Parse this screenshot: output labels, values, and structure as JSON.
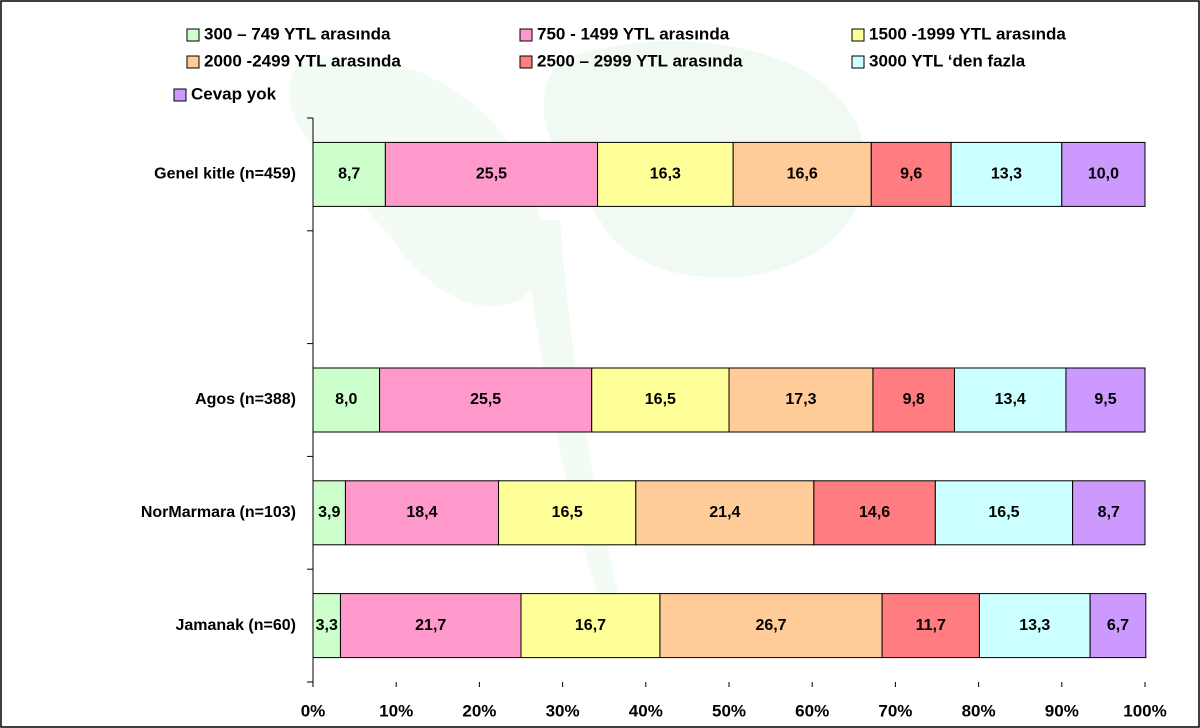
{
  "chart_data": {
    "type": "stacked-bar-horizontal",
    "categories": [
      "Genel kitle (n=459)",
      null,
      "Agos (n=388)",
      "NorMarmara (n=103)",
      "Jamanak (n=60)"
    ],
    "xlim": [
      0,
      100
    ],
    "xticks": [
      {
        "value": 0,
        "label": "0%"
      },
      {
        "value": 10,
        "label": "10%"
      },
      {
        "value": 20,
        "label": "20%"
      },
      {
        "value": 30,
        "label": "30%"
      },
      {
        "value": 40,
        "label": "40%"
      },
      {
        "value": 50,
        "label": "50%"
      },
      {
        "value": 60,
        "label": "60%"
      },
      {
        "value": 70,
        "label": "70%"
      },
      {
        "value": 80,
        "label": "80%"
      },
      {
        "value": 90,
        "label": "90%"
      },
      {
        "value": 100,
        "label": "100%"
      }
    ],
    "series": [
      {
        "name": "300 – 749 YTL arasında",
        "color": "#ccffcc",
        "values": [
          8.7,
          null,
          8.0,
          3.9,
          3.3
        ],
        "value_labels": [
          "8,7",
          null,
          "8,0",
          "3,9",
          "3,3"
        ]
      },
      {
        "name": "750  - 1499 YTL arasında",
        "color": "#ff99cc",
        "values": [
          25.5,
          null,
          25.5,
          18.4,
          21.7
        ],
        "value_labels": [
          "25,5",
          null,
          "25,5",
          "18,4",
          "21,7"
        ]
      },
      {
        "name": "1500 -1999 YTL arasında",
        "color": "#ffff99",
        "values": [
          16.3,
          null,
          16.5,
          16.5,
          16.7
        ],
        "value_labels": [
          "16,3",
          null,
          "16,5",
          "16,5",
          "16,7"
        ]
      },
      {
        "name": "2000 -2499 YTL arasında",
        "color": "#ffcc99",
        "values": [
          16.6,
          null,
          17.3,
          21.4,
          26.7
        ],
        "value_labels": [
          "16,6",
          null,
          "17,3",
          "21,4",
          "26,7"
        ]
      },
      {
        "name": "2500 – 2999 YTL arasında",
        "color": "#ff7c80",
        "values": [
          9.6,
          null,
          9.8,
          14.6,
          11.7
        ],
        "value_labels": [
          "9,6",
          null,
          "9,8",
          "14,6",
          "11,7"
        ]
      },
      {
        "name": "3000 YTL ‘den fazla",
        "color": "#ccffff",
        "values": [
          13.3,
          null,
          13.4,
          16.5,
          13.3
        ],
        "value_labels": [
          "13,3",
          null,
          "13,4",
          "16,5",
          "13,3"
        ]
      },
      {
        "name": "Cevap yok",
        "color": "#cc99ff",
        "values": [
          10.0,
          null,
          9.5,
          8.7,
          6.7
        ],
        "value_labels": [
          "10,0",
          null,
          "9,5",
          "8,7",
          "6,7"
        ]
      }
    ]
  }
}
